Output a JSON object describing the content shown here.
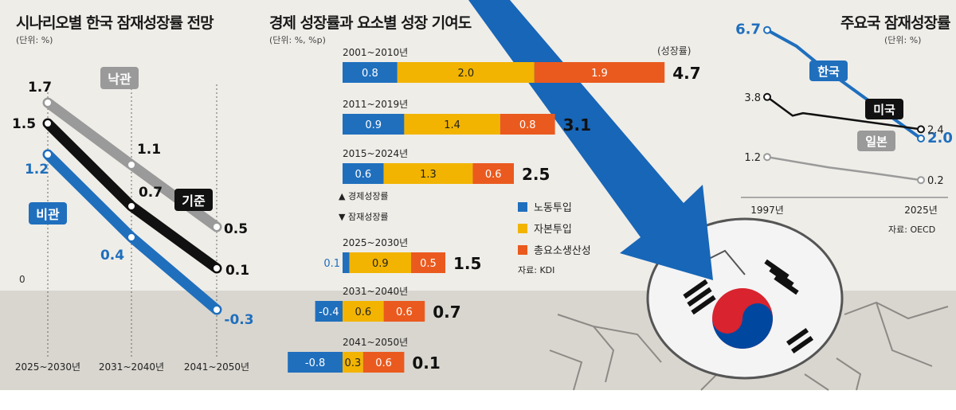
{
  "colors": {
    "blue": "#1f6fbd",
    "gold": "#f2b400",
    "orange": "#ea5a1e",
    "black": "#111111",
    "gray": "#9a9a9a",
    "arrow": "#1766b8",
    "flag_red": "#d9232e",
    "flag_blue": "#0047a0"
  },
  "panel_scenario": {
    "title": "시나리오별 한국 잠재성장률 전망",
    "unit": "(단위: %)",
    "zero_label": "0",
    "chart_data": {
      "type": "line",
      "title": "시나리오별 한국 잠재성장률 전망",
      "categories": [
        "2025~2030년",
        "2031~2040년",
        "2041~2050년"
      ],
      "series": [
        {
          "name": "낙관",
          "values": [
            1.7,
            1.1,
            0.5
          ],
          "labels": [
            "1.7",
            "1.1",
            "0.5"
          ],
          "color": "#9a9a9a"
        },
        {
          "name": "기준",
          "values": [
            1.5,
            0.7,
            0.1
          ],
          "labels": [
            "1.5",
            "0.7",
            "0.1"
          ],
          "color": "#111111"
        },
        {
          "name": "비관",
          "values": [
            1.2,
            0.4,
            -0.3
          ],
          "labels": [
            "1.2",
            "0.4",
            "-0.3"
          ],
          "color": "#1f6fbd"
        }
      ],
      "ylim": [
        -0.4,
        2.0
      ],
      "grid": false
    }
  },
  "panel_contribution": {
    "title": "경제 성장률과 요소별 성장 기여도",
    "unit": "(단위: %, %p)",
    "total_header": "(성장률)",
    "legend_up": "▲ 경제성장률",
    "legend_down": "▼ 잠재성장률",
    "source": "자료: KDI",
    "chart_data": {
      "type": "bar",
      "stacked": true,
      "orientation": "horizontal",
      "title": "경제 성장률과 요소별 성장 기여도",
      "categories": [
        "2001~2010년",
        "2011~2019년",
        "2015~2024년",
        "2025~2030년",
        "2031~2040년",
        "2041~2050년"
      ],
      "series": [
        {
          "name": "노동투입",
          "values": [
            0.8,
            0.9,
            0.6,
            0.1,
            -0.4,
            -0.8
          ],
          "labels": [
            "0.8",
            "0.9",
            "0.6",
            "0.1",
            "-0.4",
            "-0.8"
          ],
          "color": "#1f6fbd"
        },
        {
          "name": "자본투입",
          "values": [
            2.0,
            1.4,
            1.3,
            0.9,
            0.6,
            0.3
          ],
          "labels": [
            "2.0",
            "1.4",
            "1.3",
            "0.9",
            "0.6",
            "0.3"
          ],
          "color": "#f2b400"
        },
        {
          "name": "총요소생산성",
          "values": [
            1.9,
            0.8,
            0.6,
            0.5,
            0.6,
            0.6
          ],
          "labels": [
            "1.9",
            "0.8",
            "0.6",
            "0.5",
            "0.6",
            "0.6"
          ],
          "color": "#ea5a1e"
        }
      ],
      "totals": [
        4.7,
        3.1,
        2.5,
        1.5,
        0.7,
        0.1
      ],
      "total_labels": [
        "4.7",
        "3.1",
        "2.5",
        "1.5",
        "0.7",
        "0.1"
      ]
    }
  },
  "panel_countries": {
    "title": "주요국 잠재성장률",
    "unit": "(단위: %)",
    "source": "자료: OECD",
    "chart_data": {
      "type": "line",
      "title": "주요국 잠재성장률",
      "x": [
        "1997년",
        "2025년"
      ],
      "series": [
        {
          "name": "한국",
          "start": 6.7,
          "end": 2.0,
          "start_label": "6.7",
          "end_label": "2.0",
          "color": "#1f6fbd"
        },
        {
          "name": "미국",
          "start": 3.8,
          "end": 2.4,
          "start_label": "3.8",
          "end_label": "2.4",
          "color": "#111111"
        },
        {
          "name": "일본",
          "start": 1.2,
          "end": 0.2,
          "start_label": "1.2",
          "end_label": "0.2",
          "color": "#9a9a9a"
        }
      ],
      "ylim": [
        0,
        7
      ],
      "grid": false
    }
  }
}
